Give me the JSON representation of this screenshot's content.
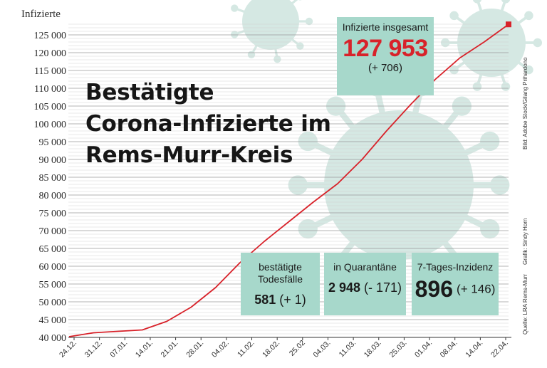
{
  "chart_data": {
    "type": "line",
    "ylabel": "Infizierte",
    "title_lines": [
      "Bestätigte",
      "Corona-Infizierte im",
      "Rems-Murr-Kreis"
    ],
    "ylim": [
      40000,
      128000
    ],
    "yticks": [
      40000,
      45000,
      50000,
      55000,
      60000,
      65000,
      70000,
      75000,
      80000,
      85000,
      90000,
      95000,
      100000,
      105000,
      110000,
      115000,
      120000,
      125000
    ],
    "ytick_labels": [
      "40 000",
      "45 000",
      "50 000",
      "55 000",
      "60 000",
      "65 000",
      "70 000",
      "75 000",
      "80 000",
      "85 000",
      "90 000",
      "95 000",
      "100 000",
      "105 000",
      "110 000",
      "115 000",
      "120 000",
      "125 000"
    ],
    "xtick_labels": [
      "24.12.",
      "31.12.",
      "07.01.",
      "14.01.",
      "21.01.",
      "28.01.",
      "04.02.",
      "11.02.",
      "18.02.",
      "25.02",
      "04.03.",
      "11.03.",
      "18.03.",
      "25.03.",
      "01.04.",
      "08.04.",
      "14.04.",
      "22.04."
    ],
    "series": [
      {
        "color": "#d8222a",
        "values": [
          40200,
          41300,
          41700,
          42100,
          44500,
          48500,
          54000,
          61000,
          67000,
          72500,
          78000,
          83200,
          90000,
          98000,
          105500,
          112500,
          118500,
          123000,
          127953
        ]
      }
    ],
    "grid": true
  },
  "info": {
    "total_label": "Infizierte insgesamt",
    "total_value": "127 953",
    "total_change": "(+ 706)",
    "deaths_label": "bestätigte Todesfälle",
    "deaths_value": "581",
    "deaths_change": "(+ 1)",
    "quarantine_label": "in Quarantäne",
    "quarantine_value": "2 948",
    "quarantine_change": "(- 171)",
    "incidence_label": "7-Tages-Inzidenz",
    "incidence_value": "896",
    "incidence_change": "(+ 146)"
  },
  "credits": {
    "photo": "Bild: Adobe Stock/Gilang Prihardono",
    "graphic": "Grafik: Sindy Horn",
    "source": "Quelle: LRA Rems-Murr"
  },
  "colors": {
    "line": "#d8222a",
    "box": "#a7d8cb",
    "virus": "#d5e8e3"
  }
}
